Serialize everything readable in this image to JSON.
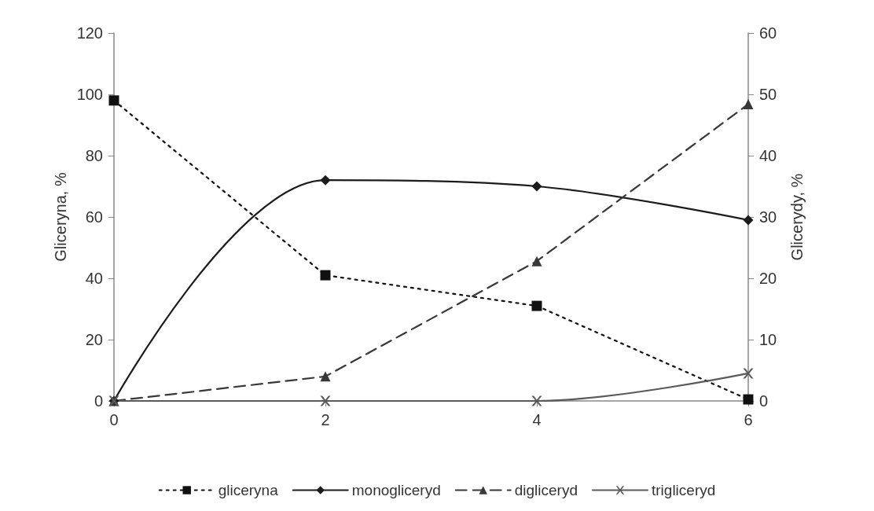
{
  "chart_data": {
    "type": "line",
    "ylabel": "Gliceryna, %",
    "y2label": "Glicerydy, %",
    "x": [
      0,
      2,
      4,
      6
    ],
    "xlim": [
      0,
      6
    ],
    "xticks": [
      0,
      2,
      4,
      6
    ],
    "ylim": [
      0,
      120
    ],
    "yticks": [
      0,
      20,
      40,
      60,
      80,
      100,
      120
    ],
    "y2lim": [
      0,
      60
    ],
    "y2ticks": [
      0,
      10,
      20,
      30,
      40,
      50,
      60
    ],
    "grid": false,
    "legend": "bottom",
    "series": [
      {
        "name": "gliceryna",
        "color": "#111111",
        "values": [
          98,
          41,
          31,
          0.5
        ],
        "marker": "square",
        "line_style": "dotted"
      },
      {
        "name": "monogliceryd",
        "color": "#1c1c1c",
        "values": [
          0,
          36,
          35,
          29.5
        ],
        "marker": "diamond",
        "line_style": "solid",
        "axis": "y2"
      },
      {
        "name": "digliceryd",
        "color": "#383838",
        "values": [
          0,
          4,
          22.8,
          48.4
        ],
        "marker": "triangle",
        "line_style": "dashed",
        "axis": "y2"
      },
      {
        "name": "trigliceryd",
        "color": "#5a5a5a",
        "values": [
          0,
          0,
          0,
          4.5
        ],
        "marker": "cross",
        "line_style": "solid",
        "axis": "y2"
      }
    ]
  }
}
